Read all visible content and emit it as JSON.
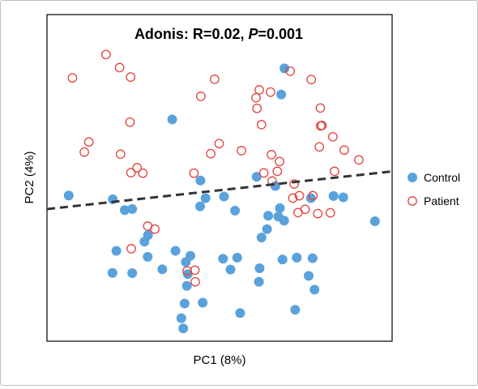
{
  "chart_data": {
    "type": "scatter",
    "title_prefix": "Adonis: R=0.02, ",
    "title_p": "P",
    "title_suffix": "=0.001",
    "xlabel": "PC1 (8%)",
    "ylabel": "PC2 (4%)",
    "xlim": [
      0,
      1
    ],
    "ylim": [
      0,
      1
    ],
    "grid": false,
    "legend_position": "right",
    "trend_line": {
      "style": "dashed",
      "color": "#333333",
      "x": [
        0,
        1
      ],
      "y": [
        0.44,
        0.57
      ]
    },
    "series": [
      {
        "name": "Control",
        "marker": "filled-circle",
        "color": "#5aa2dc",
        "points": [
          [
            0.702,
            0.954
          ],
          [
            0.692,
            0.858
          ],
          [
            0.355,
            0.766
          ],
          [
            0.0345,
            0.486
          ],
          [
            0.171,
            0.472
          ],
          [
            0.231,
            0.436
          ],
          [
            0.208,
            0.432
          ],
          [
            0.442,
            0.541
          ],
          [
            0.616,
            0.555
          ],
          [
            0.674,
            0.521
          ],
          [
            0.515,
            0.482
          ],
          [
            0.458,
            0.476
          ],
          [
            0.441,
            0.446
          ],
          [
            0.549,
            0.43
          ],
          [
            0.688,
            0.439
          ],
          [
            0.683,
            0.408
          ],
          [
            0.784,
            0.476
          ],
          [
            0.854,
            0.484
          ],
          [
            0.884,
            0.479
          ],
          [
            0.652,
            0.411
          ],
          [
            0.701,
            0.393
          ],
          [
            0.982,
            0.391
          ],
          [
            0.648,
            0.362
          ],
          [
            0.631,
            0.331
          ],
          [
            0.28,
            0.34
          ],
          [
            0.269,
            0.316
          ],
          [
            0.182,
            0.282
          ],
          [
            0.279,
            0.26
          ],
          [
            0.365,
            0.282
          ],
          [
            0.411,
            0.264
          ],
          [
            0.397,
            0.241
          ],
          [
            0.512,
            0.253
          ],
          [
            0.556,
            0.257
          ],
          [
            0.696,
            0.25
          ],
          [
            0.74,
            0.257
          ],
          [
            0.789,
            0.255
          ],
          [
            0.17,
            0.201
          ],
          [
            0.324,
            0.214
          ],
          [
            0.403,
            0.196
          ],
          [
            0.535,
            0.213
          ],
          [
            0.625,
            0.218
          ],
          [
            0.231,
            0.2
          ],
          [
            0.777,
            0.19
          ],
          [
            0.4,
            0.153
          ],
          [
            0.623,
            0.168
          ],
          [
            0.795,
            0.139
          ],
          [
            0.449,
            0.091
          ],
          [
            0.393,
            0.088
          ],
          [
            0.565,
            0.053
          ],
          [
            0.735,
            0.065
          ],
          [
            0.383,
            0.034
          ],
          [
            0.389,
            -0.004
          ]
        ]
      },
      {
        "name": "Patient",
        "marker": "hollow-circle",
        "color": "#e0413a",
        "points": [
          [
            0.15,
            1.005
          ],
          [
            0.192,
            0.957
          ],
          [
            0.226,
            0.922
          ],
          [
            0.046,
            0.919
          ],
          [
            0.72,
            0.944
          ],
          [
            0.486,
            0.914
          ],
          [
            0.785,
            0.913
          ],
          [
            0.624,
            0.875
          ],
          [
            0.659,
            0.867
          ],
          [
            0.443,
            0.851
          ],
          [
            0.614,
            0.846
          ],
          [
            0.617,
            0.807
          ],
          [
            0.813,
            0.808
          ],
          [
            0.224,
            0.756
          ],
          [
            0.631,
            0.747
          ],
          [
            0.814,
            0.742
          ],
          [
            0.818,
            0.744
          ],
          [
            0.852,
            0.702
          ],
          [
            0.097,
            0.683
          ],
          [
            0.5,
            0.677
          ],
          [
            0.81,
            0.665
          ],
          [
            0.569,
            0.651
          ],
          [
            0.083,
            0.646
          ],
          [
            0.195,
            0.638
          ],
          [
            0.474,
            0.64
          ],
          [
            0.662,
            0.636
          ],
          [
            0.887,
            0.653
          ],
          [
            0.687,
            0.611
          ],
          [
            0.932,
            0.617
          ],
          [
            0.246,
            0.588
          ],
          [
            0.68,
            0.575
          ],
          [
            0.227,
            0.57
          ],
          [
            0.264,
            0.568
          ],
          [
            0.422,
            0.568
          ],
          [
            0.638,
            0.569
          ],
          [
            0.857,
            0.575
          ],
          [
            0.664,
            0.539
          ],
          [
            0.732,
            0.528
          ],
          [
            0.748,
            0.485
          ],
          [
            0.79,
            0.485
          ],
          [
            0.728,
            0.476
          ],
          [
            0.844,
            0.422
          ],
          [
            0.766,
            0.435
          ],
          [
            0.744,
            0.423
          ],
          [
            0.805,
            0.419
          ],
          [
            0.301,
            0.362
          ],
          [
            0.279,
            0.373
          ],
          [
            0.228,
            0.29
          ],
          [
            0.425,
            0.211
          ],
          [
            0.401,
            0.208
          ],
          [
            0.426,
            0.168
          ]
        ]
      }
    ]
  }
}
